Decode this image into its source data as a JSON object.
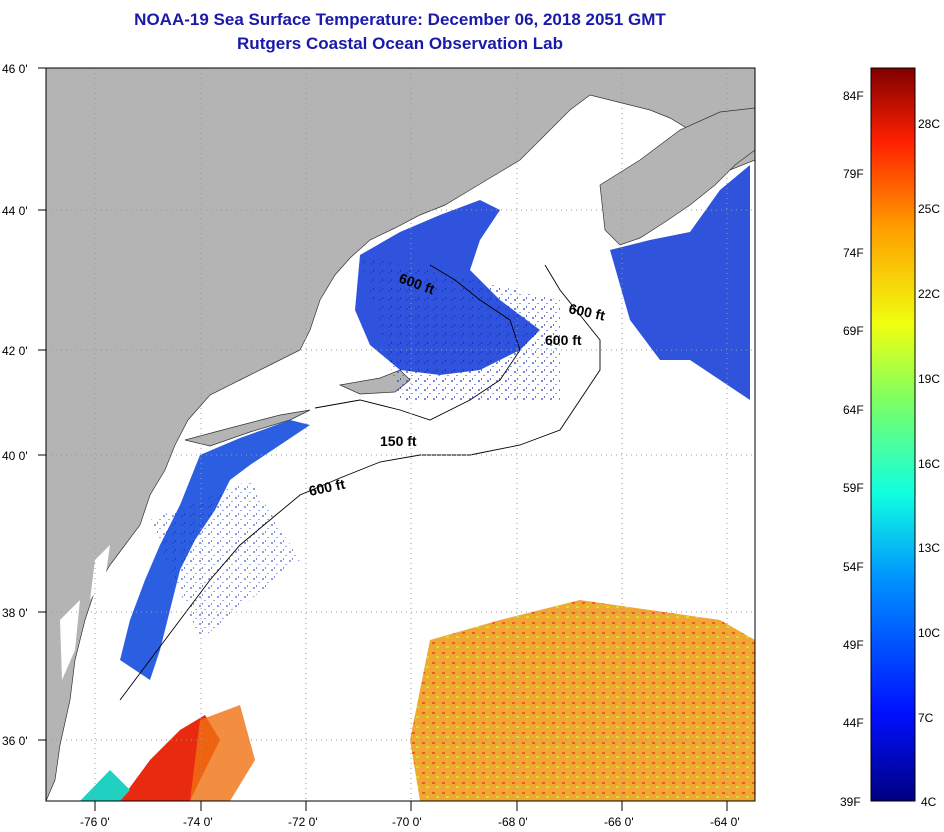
{
  "title": "NOAA-19 Sea Surface Temperature:  December 06, 2018 2051 GMT",
  "subtitle": "Rutgers Coastal Ocean Observation Lab",
  "lon_ticks": [
    "-76 0'",
    "-74 0'",
    "-72 0'",
    "-70 0'",
    "-68 0'",
    "-66 0'",
    "-64 0'"
  ],
  "lat_ticks": [
    "46 0'",
    "44 0'",
    "42 0'",
    "40 0'",
    "38 0'",
    "36 0'"
  ],
  "contours": [
    "600 ft",
    "600 ft",
    "150 ft",
    "600 ft",
    "600 ft"
  ],
  "legend": {
    "f_labels": [
      "84F",
      "79F",
      "74F",
      "69F",
      "64F",
      "59F",
      "54F",
      "49F",
      "44F",
      "39F"
    ],
    "c_labels": [
      "28C",
      "25C",
      "22C",
      "19C",
      "16C",
      "13C",
      "10C",
      "7C",
      "4C"
    ]
  },
  "colors": {
    "land": "#b4b4b4",
    "title": "#1a1aa8"
  }
}
